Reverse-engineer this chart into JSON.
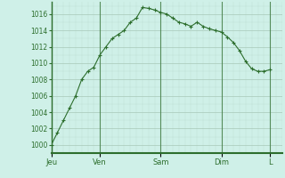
{
  "background_color": "#cff0e8",
  "plot_bg_color": "#cff0e8",
  "line_color": "#2d6e2d",
  "marker_color": "#2d6e2d",
  "grid_color_major": "#a8c8b8",
  "grid_color_minor": "#bcddd0",
  "axis_color": "#2d6e2d",
  "ylim": [
    999,
    1017.5
  ],
  "yticks": [
    1000,
    1002,
    1004,
    1006,
    1008,
    1010,
    1012,
    1014,
    1016
  ],
  "day_labels": [
    "Jeu",
    "Ven",
    "Sam",
    "Dim",
    "L"
  ],
  "day_positions": [
    0,
    48,
    108,
    168,
    216
  ],
  "xlim": [
    0,
    228
  ],
  "x": [
    0,
    6,
    12,
    18,
    24,
    30,
    36,
    42,
    48,
    54,
    60,
    66,
    72,
    78,
    84,
    90,
    96,
    102,
    108,
    114,
    120,
    126,
    132,
    138,
    144,
    150,
    156,
    162,
    168,
    174,
    180,
    186,
    192,
    198,
    204,
    210,
    216
  ],
  "y": [
    1000,
    1001.5,
    1003,
    1004.5,
    1006,
    1008,
    1009,
    1009.5,
    1011,
    1012,
    1013,
    1013.5,
    1014,
    1015,
    1015.5,
    1016.8,
    1016.7,
    1016.5,
    1016.2,
    1016.0,
    1015.5,
    1015.0,
    1014.8,
    1014.5,
    1015.0,
    1014.5,
    1014.2,
    1014.0,
    1013.8,
    1013.2,
    1012.5,
    1011.5,
    1010.2,
    1009.3,
    1009.0,
    1009.0,
    1009.2
  ]
}
